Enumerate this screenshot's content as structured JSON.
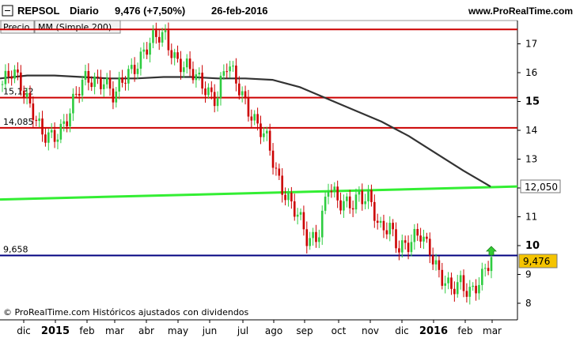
{
  "header": {
    "ticker": "REPSOL",
    "period": "Diario",
    "last_change": "9,476 (+7,50%)",
    "date": "26-feb-2016",
    "site": "www.ProRealTime.com"
  },
  "legend": {
    "price_label": "Precio",
    "ma_label": "MM (Simple 200)"
  },
  "footer": {
    "copyright": "© ProRealTime.com Históricos ajustados con dividendos"
  },
  "colors": {
    "up": "#2ecc40",
    "down": "#cc0000",
    "resistance": "#cc0000",
    "support": "#000080",
    "trend": "#33ee33",
    "ma": "#333333",
    "price_badge": "#f5c400"
  },
  "chart_data": {
    "type": "candlestick",
    "y_ticks": [
      "8",
      "9",
      "10",
      "11",
      "12",
      "13",
      "14",
      "15",
      "16",
      "17"
    ],
    "y_ticks_bold": [
      "10",
      "15"
    ],
    "ylim": [
      7.6,
      17.6
    ],
    "x_ticks": [
      "dic",
      "2015",
      "feb",
      "mar",
      "abr",
      "may",
      "jun",
      "jul",
      "ago",
      "sep",
      "oct",
      "nov",
      "dic",
      "2016",
      "feb",
      "mar"
    ],
    "x_ticks_bold": [
      "2015",
      "2016"
    ],
    "levels": [
      {
        "name": "resistance-top",
        "value": 17.5,
        "label": "",
        "color": "#cc0000"
      },
      {
        "name": "level-15132",
        "value": 15.132,
        "label": "15,132",
        "color": "#cc0000"
      },
      {
        "name": "level-14085",
        "value": 14.085,
        "label": "14,085",
        "color": "#cc0000"
      },
      {
        "name": "level-9658",
        "value": 9.658,
        "label": "9,658",
        "color": "#000080"
      }
    ],
    "trendline": {
      "start": 11.6,
      "end": 12.05,
      "label": "12,050"
    },
    "last_price": "9,476",
    "last_price_value": 9.476,
    "ma_200": [
      15.8,
      15.9,
      15.9,
      15.85,
      15.8,
      15.8,
      15.85,
      15.85,
      15.8,
      15.8,
      15.75,
      15.5,
      15.1,
      14.7,
      14.3,
      13.8,
      13.2,
      12.6,
      12.05
    ],
    "closes": [
      15.6,
      15.9,
      15.5,
      14.8,
      13.7,
      13.6,
      14.3,
      15.1,
      15.6,
      15.7,
      15.9,
      15.1,
      15.7,
      16.3,
      16.9,
      17.1,
      17.2,
      16.6,
      16.2,
      15.7,
      15.5,
      15.2,
      16.2,
      15.6,
      15.0,
      14.2,
      13.5,
      12.4,
      11.8,
      11.0,
      10.0,
      10.5,
      12.2,
      11.3,
      11.4,
      11.9,
      11.6,
      10.4,
      10.8,
      10.0,
      9.9,
      10.4,
      10.0,
      8.9,
      8.3,
      8.8,
      8.5,
      8.7,
      9.476
    ]
  }
}
